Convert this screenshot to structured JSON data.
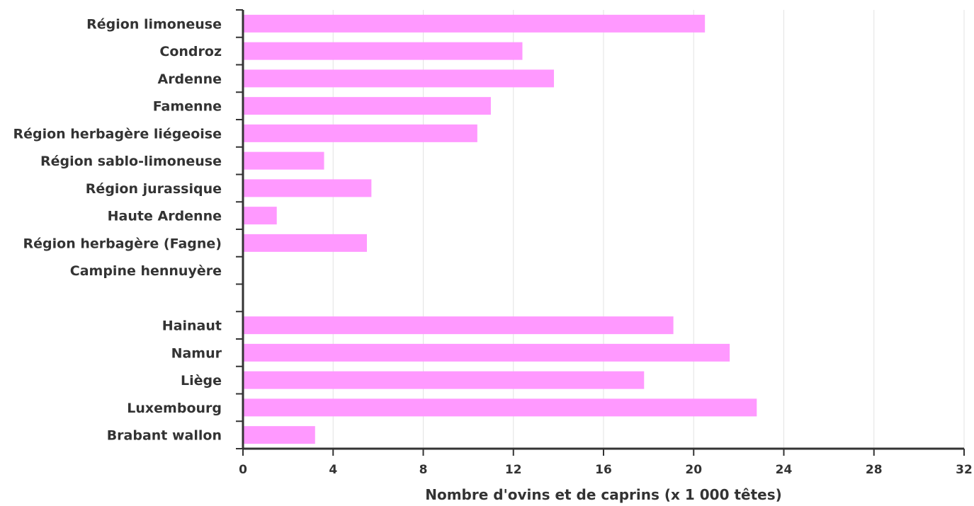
{
  "chart_data": {
    "type": "bar",
    "orientation": "horizontal",
    "categories": [
      "Région limoneuse",
      "Condroz",
      "Ardenne",
      "Famenne",
      "Région herbagère liégeoise",
      "Région sablo-limoneuse",
      "Région jurassique",
      "Haute Ardenne",
      "Région herbagère (Fagne)",
      "Campine hennuyère",
      "",
      "Hainaut",
      "Namur",
      "Liège",
      "Luxembourg",
      "Brabant wallon"
    ],
    "values": [
      20.5,
      12.4,
      13.8,
      11.0,
      10.4,
      3.6,
      5.7,
      1.5,
      5.5,
      0,
      null,
      19.1,
      21.6,
      17.8,
      22.8,
      3.2
    ],
    "xlabel": "Nombre d'ovins et de caprins (x 1 000 têtes)",
    "ylabel": "",
    "xlim": [
      0,
      32
    ],
    "xticks": [
      "0",
      "4",
      "8",
      "12",
      "16",
      "20",
      "24",
      "28",
      "32"
    ],
    "grid": "vertical",
    "bar_color": "#ff99ff"
  }
}
